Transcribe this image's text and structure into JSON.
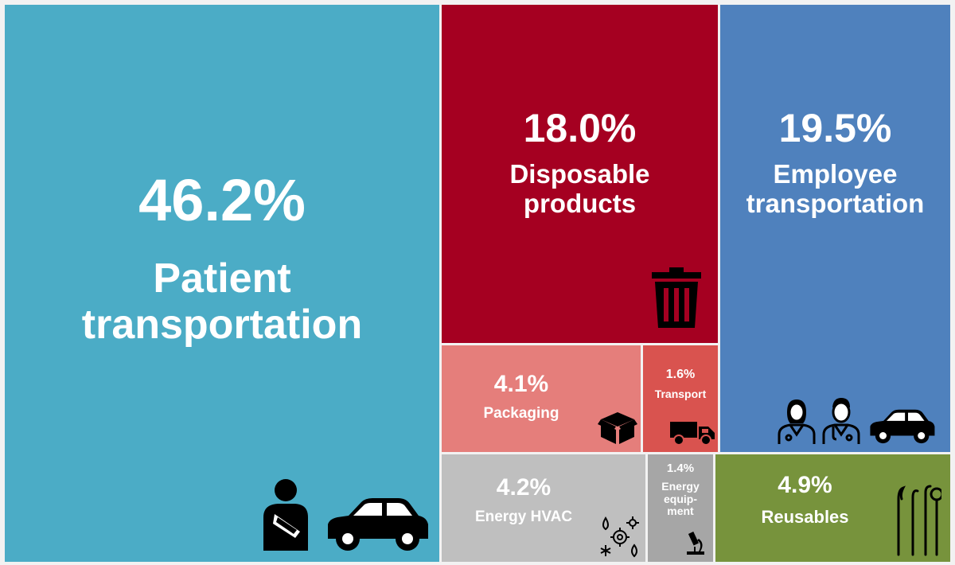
{
  "chart_data": {
    "type": "treemap",
    "title": "",
    "items": [
      {
        "id": "patient",
        "value": 46.2,
        "value_label": "46.2%",
        "label": "Patient\ntransportation",
        "color": "#4bacc6",
        "icons": [
          "patient-arm-sling-icon",
          "car-icon"
        ]
      },
      {
        "id": "disposable",
        "value": 18.0,
        "value_label": "18.0%",
        "label": "Disposable\nproducts",
        "color": "#a50021",
        "icons": [
          "trash-can-icon"
        ]
      },
      {
        "id": "packaging",
        "value": 4.1,
        "value_label": "4.1%",
        "label": "Packaging",
        "color": "#e57e7b",
        "icons": [
          "box-icon"
        ]
      },
      {
        "id": "transport",
        "value": 1.6,
        "value_label": "1.6%",
        "label": "Transport",
        "color": "#d9534f",
        "icons": [
          "truck-icon"
        ]
      },
      {
        "id": "employee",
        "value": 19.5,
        "value_label": "19.5%",
        "label": "Employee\ntransportation",
        "color": "#4f81bd",
        "icons": [
          "doctor-female-icon",
          "doctor-male-icon",
          "car-icon"
        ]
      },
      {
        "id": "hvac",
        "value": 4.2,
        "value_label": "4.2%",
        "label": "Energy HVAC",
        "color": "#bfbfbf",
        "icons": [
          "hvac-icon"
        ]
      },
      {
        "id": "equipment",
        "value": 1.4,
        "value_label": "1.4%",
        "label": "Energy\nequip-\nment",
        "color": "#a6a6a6",
        "icons": [
          "microscope-icon"
        ]
      },
      {
        "id": "reusables",
        "value": 4.9,
        "value_label": "4.9%",
        "label": "Reusables",
        "color": "#77933c",
        "icons": [
          "dental-tools-icon"
        ]
      }
    ]
  }
}
